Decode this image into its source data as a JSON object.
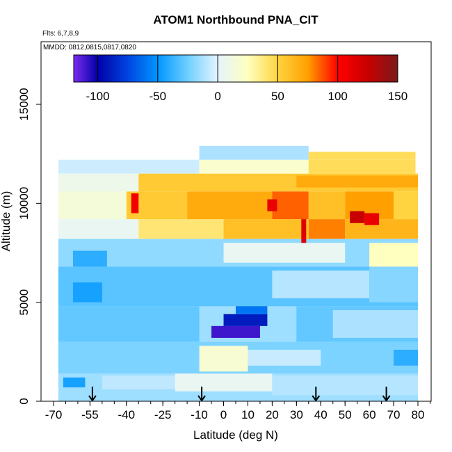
{
  "chart_data": {
    "type": "heatmap",
    "title": "ATOM1 Northbound PNA_CIT",
    "annotations": [
      "Flts: 6,7,8,9",
      "MMDD: 0812,0815,0817,0820"
    ],
    "xlabel": "Latitude (deg N)",
    "ylabel": "Altitude (m)",
    "xlim": [
      -70,
      85
    ],
    "ylim": [
      0,
      18000
    ],
    "x_ticks": [
      -70,
      -55,
      -40,
      -25,
      -10,
      0,
      10,
      20,
      30,
      40,
      50,
      60,
      70,
      80
    ],
    "y_ticks": [
      0,
      5000,
      10000,
      15000
    ],
    "colorbar": {
      "range": [
        -120,
        150
      ],
      "ticks": [
        -100,
        -50,
        0,
        50,
        100,
        150
      ],
      "stops": [
        {
          "v": -120,
          "c": "#7b2cf0"
        },
        {
          "v": -100,
          "c": "#0000a8"
        },
        {
          "v": -75,
          "c": "#0044e0"
        },
        {
          "v": -50,
          "c": "#0096ff"
        },
        {
          "v": -25,
          "c": "#6fcfff"
        },
        {
          "v": 0,
          "c": "#e4f4ff"
        },
        {
          "v": 25,
          "c": "#ffffc0"
        },
        {
          "v": 50,
          "c": "#ffd440"
        },
        {
          "v": 75,
          "c": "#ffa000"
        },
        {
          "v": 100,
          "c": "#ff0000"
        },
        {
          "v": 125,
          "c": "#c80000"
        },
        {
          "v": 150,
          "c": "#7a1a1a"
        }
      ]
    },
    "flight_arrows_lat": [
      -54,
      -9,
      38,
      67
    ],
    "grid": false,
    "cells": [
      {
        "x0": -68,
        "x1": 80,
        "y0": 0,
        "y1": 1400,
        "v": -15
      },
      {
        "x0": -66,
        "x1": -57,
        "y0": 700,
        "y1": 1200,
        "v": -45
      },
      {
        "x0": -50,
        "x1": -20,
        "y0": 600,
        "y1": 1300,
        "v": -8
      },
      {
        "x0": -20,
        "x1": 20,
        "y0": 500,
        "y1": 1400,
        "v": 5
      },
      {
        "x0": 20,
        "x1": 80,
        "y0": 300,
        "y1": 1300,
        "v": -10
      },
      {
        "x0": -68,
        "x1": 80,
        "y0": 1400,
        "y1": 3000,
        "v": -22
      },
      {
        "x0": -10,
        "x1": 10,
        "y0": 1500,
        "y1": 2800,
        "v": 18
      },
      {
        "x0": 10,
        "x1": 40,
        "y0": 1800,
        "y1": 2600,
        "v": -6
      },
      {
        "x0": 70,
        "x1": 80,
        "y0": 1800,
        "y1": 2600,
        "v": -40
      },
      {
        "x0": -68,
        "x1": 80,
        "y0": 3000,
        "y1": 4800,
        "v": -28
      },
      {
        "x0": -10,
        "x1": 30,
        "y0": 3000,
        "y1": 4800,
        "v": -15
      },
      {
        "x0": -5,
        "x1": 15,
        "y0": 3200,
        "y1": 3800,
        "v": -110
      },
      {
        "x0": 0,
        "x1": 18,
        "y0": 3800,
        "y1": 4400,
        "v": -90
      },
      {
        "x0": 5,
        "x1": 18,
        "y0": 4400,
        "y1": 4900,
        "v": -60
      },
      {
        "x0": 45,
        "x1": 80,
        "y0": 3200,
        "y1": 4600,
        "v": -12
      },
      {
        "x0": -68,
        "x1": 80,
        "y0": 4800,
        "y1": 6800,
        "v": -30
      },
      {
        "x0": -62,
        "x1": -50,
        "y0": 5000,
        "y1": 6000,
        "v": -45
      },
      {
        "x0": 20,
        "x1": 60,
        "y0": 5200,
        "y1": 6600,
        "v": -10
      },
      {
        "x0": 60,
        "x1": 80,
        "y0": 5000,
        "y1": 6800,
        "v": -20
      },
      {
        "x0": -68,
        "x1": 80,
        "y0": 6800,
        "y1": 8200,
        "v": -18
      },
      {
        "x0": -62,
        "x1": -48,
        "y0": 6800,
        "y1": 7600,
        "v": -40
      },
      {
        "x0": 0,
        "x1": 50,
        "y0": 7000,
        "y1": 8000,
        "v": 5
      },
      {
        "x0": 60,
        "x1": 80,
        "y0": 6800,
        "y1": 8000,
        "v": 25
      },
      {
        "x0": -68,
        "x1": 80,
        "y0": 8200,
        "y1": 9200,
        "v": 5
      },
      {
        "x0": -35,
        "x1": 0,
        "y0": 8200,
        "y1": 9200,
        "v": 40
      },
      {
        "x0": 0,
        "x1": 35,
        "y0": 8200,
        "y1": 9200,
        "v": 60
      },
      {
        "x0": 35,
        "x1": 50,
        "y0": 8200,
        "y1": 9200,
        "v": 80
      },
      {
        "x0": 50,
        "x1": 80,
        "y0": 8200,
        "y1": 9200,
        "v": 65
      },
      {
        "x0": 32,
        "x1": 34,
        "y0": 8000,
        "y1": 9200,
        "v": 115
      },
      {
        "x0": -68,
        "x1": -40,
        "y0": 9200,
        "y1": 10600,
        "v": 15
      },
      {
        "x0": -40,
        "x1": -15,
        "y0": 9200,
        "y1": 10600,
        "v": 55
      },
      {
        "x0": -15,
        "x1": 20,
        "y0": 9200,
        "y1": 10600,
        "v": 70
      },
      {
        "x0": 20,
        "x1": 35,
        "y0": 9200,
        "y1": 10600,
        "v": 85
      },
      {
        "x0": 35,
        "x1": 50,
        "y0": 9200,
        "y1": 10600,
        "v": 60
      },
      {
        "x0": 50,
        "x1": 70,
        "y0": 9200,
        "y1": 10600,
        "v": 75
      },
      {
        "x0": 70,
        "x1": 80,
        "y0": 9200,
        "y1": 10600,
        "v": 50
      },
      {
        "x0": -38,
        "x1": -35,
        "y0": 9500,
        "y1": 10500,
        "v": 105
      },
      {
        "x0": 18,
        "x1": 22,
        "y0": 9600,
        "y1": 10200,
        "v": 110
      },
      {
        "x0": 52,
        "x1": 58,
        "y0": 9000,
        "y1": 9600,
        "v": 125
      },
      {
        "x0": 58,
        "x1": 64,
        "y0": 8900,
        "y1": 9500,
        "v": 110
      },
      {
        "x0": -68,
        "x1": -35,
        "y0": 10600,
        "y1": 11500,
        "v": 8
      },
      {
        "x0": -35,
        "x1": 80,
        "y0": 10600,
        "y1": 11500,
        "v": 55
      },
      {
        "x0": 30,
        "x1": 80,
        "y0": 10800,
        "y1": 11400,
        "v": 70
      },
      {
        "x0": -68,
        "x1": -10,
        "y0": 11500,
        "y1": 12200,
        "v": -5
      },
      {
        "x0": -10,
        "x1": 35,
        "y0": 11500,
        "y1": 12200,
        "v": 20
      },
      {
        "x0": 35,
        "x1": 79,
        "y0": 11500,
        "y1": 12200,
        "v": 45
      },
      {
        "x0": -10,
        "x1": 35,
        "y0": 12200,
        "y1": 12900,
        "v": -12
      },
      {
        "x0": 35,
        "x1": 79,
        "y0": 12200,
        "y1": 12600,
        "v": 45
      }
    ]
  }
}
